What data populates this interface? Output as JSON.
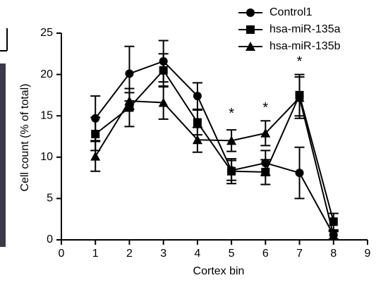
{
  "chart_data": {
    "type": "line",
    "x_label": "Cortex bin",
    "y_label": "Cell count (% of total)",
    "x": [
      1,
      2,
      3,
      4,
      5,
      6,
      7,
      8
    ],
    "series": [
      {
        "name": "Control1",
        "marker": "circle",
        "color": "#000000",
        "values": [
          14.7,
          20.1,
          21.6,
          17.4,
          8.4,
          9.3,
          8.1,
          0.6
        ],
        "errors": [
          2.7,
          3.3,
          2.5,
          1.6,
          1.2,
          1.5,
          3.1,
          0.5
        ]
      },
      {
        "name": "hsa-miR-135a",
        "marker": "square",
        "color": "#000000",
        "values": [
          12.8,
          16.0,
          20.5,
          14.2,
          8.3,
          8.2,
          17.5,
          2.2
        ],
        "errors": [
          2.0,
          2.3,
          2.0,
          1.5,
          1.5,
          1.5,
          2.5,
          1.0
        ]
      },
      {
        "name": "hsa-miR-135b",
        "marker": "triangle",
        "color": "#000000",
        "values": [
          10.1,
          16.8,
          16.6,
          12.1,
          12.0,
          12.9,
          17.2,
          0.5
        ],
        "errors": [
          1.8,
          1.0,
          2.0,
          1.5,
          1.3,
          1.5,
          2.5,
          0.5
        ]
      }
    ],
    "annotations": [
      {
        "x": 5,
        "y": 15.2,
        "text": "*"
      },
      {
        "x": 6,
        "y": 15.9,
        "text": "*"
      },
      {
        "x": 7,
        "y": 21.5,
        "text": "*"
      }
    ],
    "xlim": [
      0,
      9
    ],
    "xticks": [
      0,
      1,
      2,
      3,
      4,
      5,
      6,
      7,
      8,
      9
    ],
    "ylim": [
      0,
      25
    ],
    "yticks": [
      0,
      5,
      10,
      15,
      20,
      25
    ],
    "legend": "upper right",
    "grid": false
  }
}
